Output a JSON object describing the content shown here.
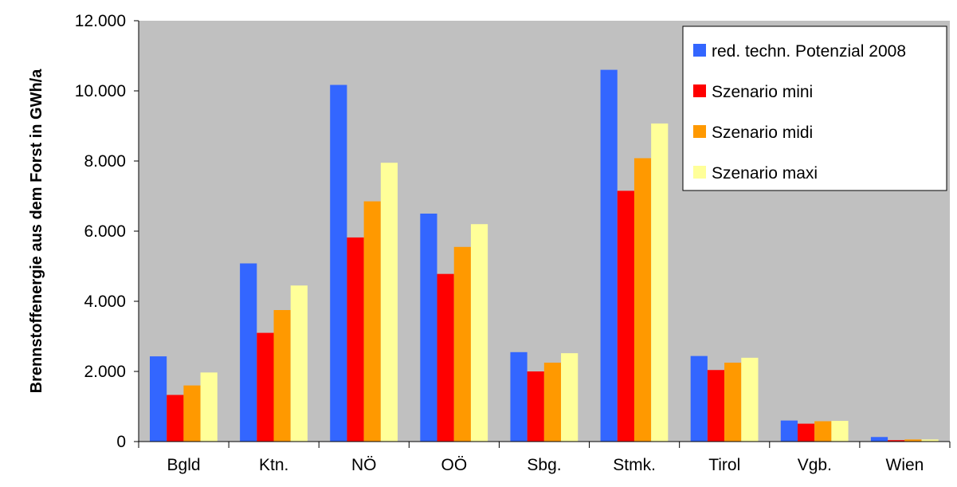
{
  "chart_data": {
    "type": "bar",
    "title": "",
    "xlabel": "",
    "ylabel": "Brennstoffenergie aus dem Forst in GWh/a",
    "ylim": [
      0,
      12000
    ],
    "yticks": [
      0,
      2000,
      4000,
      6000,
      8000,
      10000,
      12000
    ],
    "ytick_labels": [
      "0",
      "2.000",
      "4.000",
      "6.000",
      "8.000",
      "10.000",
      "12.000"
    ],
    "grid": false,
    "legend_position": "top-right",
    "plot_background": "#c0c0c0",
    "categories": [
      "Bgld",
      "Ktn.",
      "NÖ",
      "OÖ",
      "Sbg.",
      "Stmk.",
      "Tirol",
      "Vgb.",
      "Wien"
    ],
    "series": [
      {
        "name": "red. techn. Potenzial 2008",
        "color": "#3366ff",
        "values": [
          2430,
          5080,
          10170,
          6500,
          2550,
          10600,
          2440,
          600,
          130
        ]
      },
      {
        "name": "Szenario mini",
        "color": "#ff0000",
        "values": [
          1330,
          3100,
          5820,
          4780,
          2000,
          7150,
          2040,
          510,
          40
        ]
      },
      {
        "name": "Szenario midi",
        "color": "#ff9900",
        "values": [
          1600,
          3750,
          6850,
          5550,
          2250,
          8080,
          2250,
          580,
          60
        ]
      },
      {
        "name": "Szenario maxi",
        "color": "#ffff99",
        "values": [
          1970,
          4450,
          7950,
          6200,
          2520,
          9070,
          2390,
          590,
          60
        ]
      }
    ]
  }
}
